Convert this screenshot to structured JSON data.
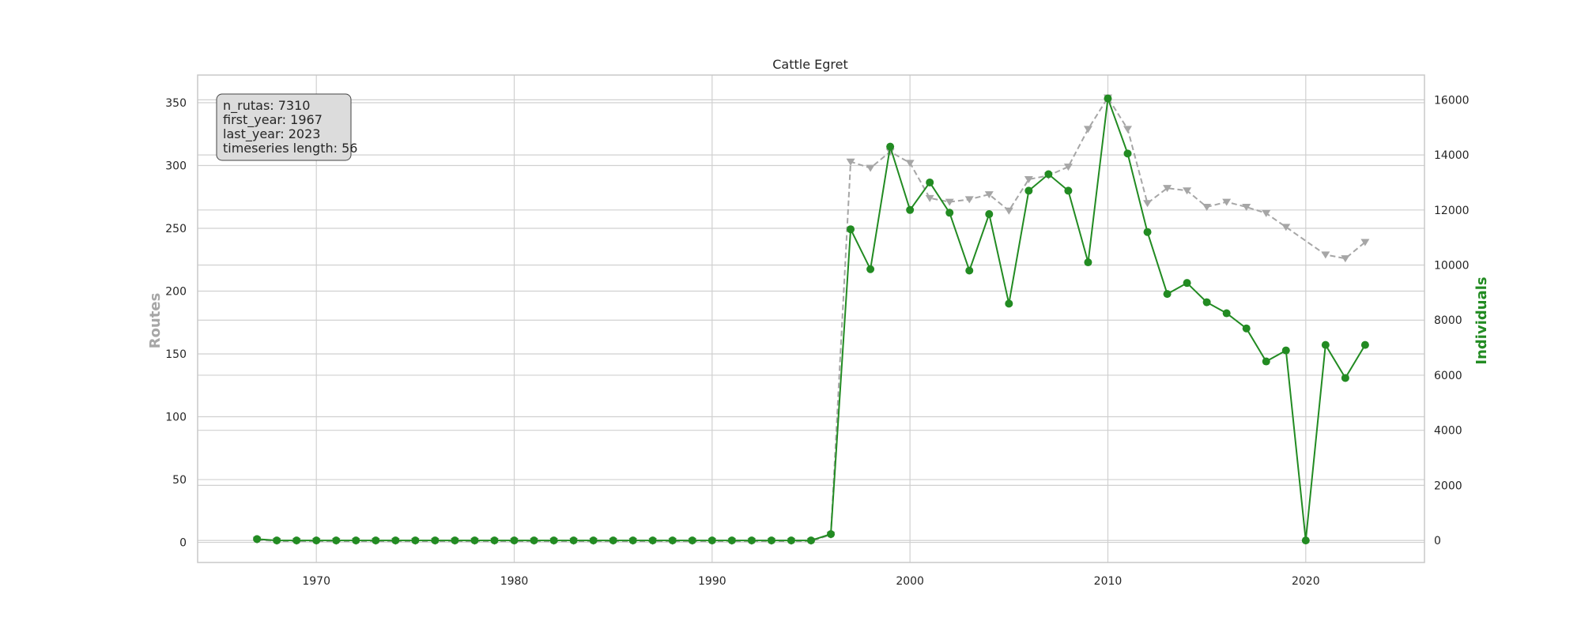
{
  "chart_data": {
    "type": "line",
    "title": "Cattle Egret",
    "ylabel_left": "Routes",
    "ylabel_right": "Individuals",
    "xlim": [
      1964,
      2026
    ],
    "ylim_left": [
      -16,
      372
    ],
    "ylim_right": [
      -800,
      16900
    ],
    "x_ticks": [
      1970,
      1980,
      1990,
      2000,
      2010,
      2020
    ],
    "y_left_ticks": [
      0,
      50,
      100,
      150,
      200,
      250,
      300,
      350
    ],
    "y_right_ticks": [
      0,
      2000,
      4000,
      6000,
      8000,
      10000,
      12000,
      14000,
      16000
    ],
    "grid": true,
    "info_box": {
      "lines": [
        "n_rutas: 7310",
        "first_year: 1967",
        "last_year: 2023",
        "timeseries length: 56"
      ],
      "placement": "top-left"
    },
    "colors": {
      "routes": "#a6a6a6",
      "individuals": "#228b22",
      "grid": "#d0d0d0",
      "frame": "#c8c8c8",
      "box_fill": "#dcdcdc"
    },
    "series": [
      {
        "name": "Routes",
        "axis": "left",
        "style": "dashed",
        "marker": "triangle-down",
        "x": [
          1967,
          1968,
          1969,
          1970,
          1971,
          1972,
          1973,
          1974,
          1975,
          1976,
          1977,
          1978,
          1979,
          1980,
          1981,
          1982,
          1983,
          1984,
          1985,
          1986,
          1987,
          1988,
          1989,
          1990,
          1991,
          1992,
          1993,
          1994,
          1995,
          1996,
          1997,
          1998,
          1999,
          2000,
          2001,
          2002,
          2003,
          2004,
          2005,
          2006,
          2007,
          2008,
          2009,
          2010,
          2011,
          2012,
          2013,
          2014,
          2015,
          2016,
          2017,
          2018,
          2019,
          2021,
          2022,
          2023
        ],
        "values": [
          2,
          1,
          1,
          1,
          1,
          1,
          1,
          1,
          1,
          1,
          1,
          1,
          1,
          1,
          1,
          1,
          1,
          1,
          1,
          1,
          1,
          1,
          1,
          1,
          1,
          1,
          1,
          1,
          1,
          6,
          303,
          298,
          311,
          302,
          274,
          271,
          273,
          277,
          264,
          289,
          292,
          299,
          329,
          354,
          329,
          270,
          282,
          280,
          267,
          271,
          267,
          262,
          251,
          229,
          226,
          239
        ]
      },
      {
        "name": "Individuals",
        "axis": "right",
        "style": "solid",
        "marker": "circle",
        "x": [
          1967,
          1968,
          1969,
          1970,
          1971,
          1972,
          1973,
          1974,
          1975,
          1976,
          1977,
          1978,
          1979,
          1980,
          1981,
          1982,
          1983,
          1984,
          1985,
          1986,
          1987,
          1988,
          1989,
          1990,
          1991,
          1992,
          1993,
          1994,
          1995,
          1996,
          1997,
          1998,
          1999,
          2000,
          2001,
          2002,
          2003,
          2004,
          2005,
          2006,
          2007,
          2008,
          2009,
          2010,
          2011,
          2012,
          2013,
          2014,
          2015,
          2016,
          2017,
          2018,
          2019,
          2020,
          2021,
          2022,
          2023
        ],
        "values": [
          50,
          0,
          0,
          0,
          0,
          0,
          0,
          0,
          0,
          0,
          0,
          0,
          0,
          0,
          0,
          0,
          0,
          0,
          0,
          0,
          0,
          0,
          0,
          0,
          0,
          0,
          0,
          0,
          0,
          230,
          11300,
          9850,
          14300,
          12000,
          13000,
          11900,
          9800,
          11850,
          8600,
          12700,
          13300,
          12700,
          10100,
          16050,
          14050,
          11200,
          8950,
          9350,
          8650,
          8250,
          7700,
          6500,
          6900,
          0,
          7100,
          5900,
          7100
        ]
      }
    ]
  }
}
